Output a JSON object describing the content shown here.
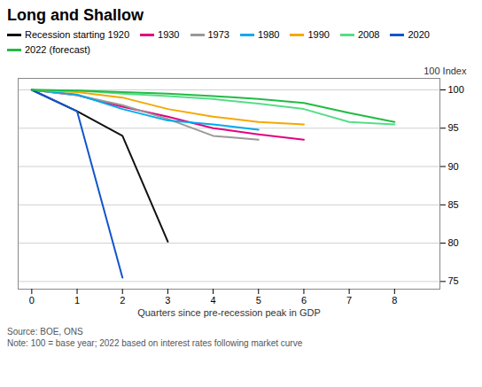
{
  "chart_data": {
    "type": "line",
    "title": "Long and Shallow",
    "xlabel": "Quarters since pre-recession peak in GDP",
    "ylabel": "100 Index",
    "annotations": [
      "Source: BOE, ONS",
      "Note: 100 = base year; 2022 based on interest rates following market curve"
    ],
    "x": [
      0,
      1,
      2,
      3,
      4,
      5,
      6,
      7,
      8
    ],
    "series": [
      {
        "name": "Recession starting 1920",
        "color": "#111111",
        "values": [
          100,
          97.2,
          94.0,
          80.2,
          null,
          null,
          null,
          null,
          null
        ]
      },
      {
        "name": "1930",
        "color": "#e5007e",
        "values": [
          100,
          99.3,
          97.8,
          96.5,
          95.0,
          94.2,
          93.5,
          null,
          null
        ]
      },
      {
        "name": "1973",
        "color": "#999999",
        "values": [
          100,
          99.3,
          98.0,
          96.2,
          94.0,
          93.5,
          null,
          null,
          null
        ]
      },
      {
        "name": "1980",
        "color": "#00aaee",
        "values": [
          100,
          99.4,
          97.5,
          96.0,
          95.5,
          94.8,
          null,
          null,
          null
        ]
      },
      {
        "name": "1990",
        "color": "#f5a800",
        "values": [
          100,
          99.7,
          99.0,
          97.5,
          96.5,
          95.8,
          95.5,
          null,
          null
        ]
      },
      {
        "name": "2008",
        "color": "#55dd88",
        "values": [
          100,
          99.9,
          99.5,
          99.2,
          98.8,
          98.2,
          97.5,
          95.8,
          95.5
        ]
      },
      {
        "name": "2020",
        "color": "#1155cc",
        "values": [
          100,
          97.2,
          75.5,
          null,
          null,
          null,
          null,
          null,
          null
        ]
      },
      {
        "name": "2022 (forecast)",
        "color": "#22bb44",
        "values": [
          100,
          99.9,
          99.7,
          99.5,
          99.2,
          98.8,
          98.3,
          97.0,
          95.8
        ]
      }
    ],
    "xlim": [
      -0.3,
      9.0
    ],
    "ylim": [
      74,
      101.5
    ],
    "xticks": [
      0,
      1,
      2,
      3,
      4,
      5,
      6,
      7,
      8
    ],
    "yticks": [
      75,
      80,
      85,
      90,
      95,
      100
    ],
    "grid": true,
    "legend": "top"
  }
}
